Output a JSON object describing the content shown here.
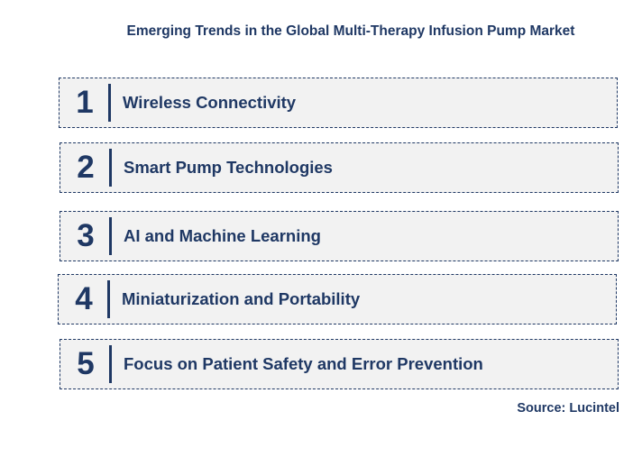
{
  "title": "Emerging Trends in the Global Multi-Therapy Infusion Pump Market",
  "trends": [
    {
      "number": "1",
      "label": "Wireless Connectivity"
    },
    {
      "number": "2",
      "label": "Smart Pump Technologies"
    },
    {
      "number": "3",
      "label": "AI and Machine Learning"
    },
    {
      "number": "4",
      "label": "Miniaturization and Portability"
    },
    {
      "number": "5",
      "label": "Focus on Patient Safety and Error Prevention"
    }
  ],
  "source": "Source: Lucintel",
  "colors": {
    "text": "#1f3864",
    "box_background": "#f2f2f2",
    "border": "#1f3864"
  }
}
